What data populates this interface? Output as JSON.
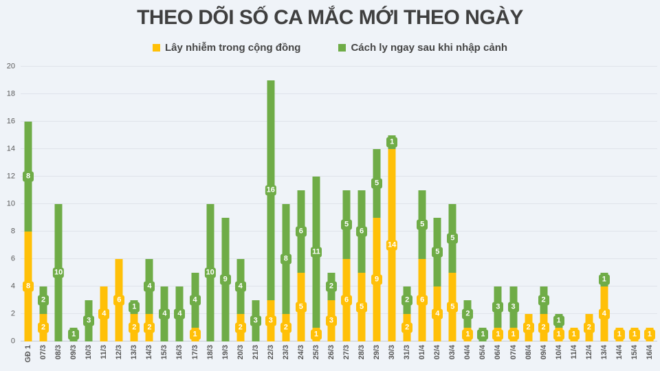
{
  "chart_data": {
    "type": "bar",
    "stacked": true,
    "title": "THEO DÕI SỐ CA MẮC MỚI THEO NGÀY",
    "categories": [
      "GĐ 1",
      "07/3",
      "08/3",
      "09/3",
      "10/3",
      "11/3",
      "12/3",
      "13/3",
      "14/3",
      "15/3",
      "16/3",
      "17/3",
      "18/3",
      "19/3",
      "20/3",
      "21/3",
      "22/3",
      "23/3",
      "24/3",
      "25/3",
      "26/3",
      "27/3",
      "28/3",
      "29/3",
      "30/3",
      "31/3",
      "01/4",
      "02/4",
      "03/4",
      "04/4",
      "05/4",
      "06/4",
      "07/4",
      "08/4",
      "09/4",
      "10/4",
      "11/4",
      "12/4",
      "13/4",
      "14/4",
      "15/4",
      "16/4"
    ],
    "series": [
      {
        "name": "Lây nhiễm trong cộng đồng",
        "color": "#FFC008",
        "values": [
          8,
          2,
          0,
          0,
          0,
          4,
          6,
          2,
          2,
          0,
          0,
          1,
          0,
          0,
          2,
          0,
          3,
          2,
          5,
          1,
          3,
          6,
          5,
          9,
          14,
          2,
          6,
          4,
          5,
          1,
          0,
          1,
          1,
          2,
          2,
          1,
          1,
          2,
          4,
          1,
          1,
          1
        ]
      },
      {
        "name": "Cách ly ngay sau khi nhập cảnh",
        "color": "#6FAC47",
        "values": [
          8,
          2,
          10,
          1,
          3,
          0,
          0,
          1,
          4,
          4,
          4,
          4,
          10,
          9,
          4,
          3,
          16,
          8,
          6,
          11,
          2,
          5,
          6,
          5,
          1,
          2,
          5,
          5,
          5,
          2,
          1,
          3,
          3,
          0,
          2,
          1,
          0,
          0,
          1,
          0,
          0,
          0
        ]
      }
    ],
    "ylim": [
      0,
      20
    ],
    "yticks": [
      0,
      2,
      4,
      6,
      8,
      10,
      12,
      14,
      16,
      18,
      20
    ],
    "grid": true,
    "legend_position": "top",
    "data_labels": "on-segments"
  },
  "colors": {
    "background": "#eff3f8",
    "gridline": "#dfe3ea",
    "title_text": "#3f3f3f",
    "axis_text": "#595959",
    "label_text": "#ffffff"
  }
}
